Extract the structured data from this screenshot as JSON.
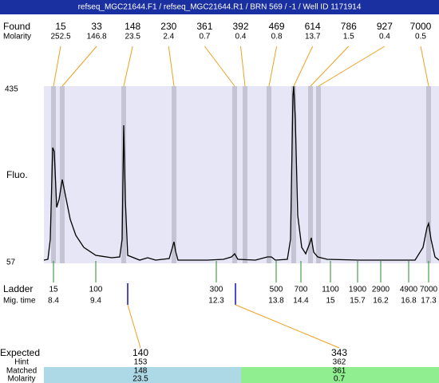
{
  "header": {
    "title": "refseq_MGC21644.F1 / refseq_MGC21644.R1 / BRN 569 / -1 / Well ID 1171914"
  },
  "found": {
    "label": "Found",
    "molarity_label": "Molarity",
    "peaks": [
      {
        "size": 15,
        "molarity": 252.5
      },
      {
        "size": 33,
        "molarity": 146.8
      },
      {
        "size": 148,
        "molarity": 23.5
      },
      {
        "size": 230,
        "molarity": 2.4
      },
      {
        "size": 361,
        "molarity": 0.7
      },
      {
        "size": 392,
        "molarity": 0.4
      },
      {
        "size": 469,
        "molarity": 0.8
      },
      {
        "size": 614,
        "molarity": 13.7
      },
      {
        "size": 786,
        "molarity": 1.5
      },
      {
        "size": 927,
        "molarity": 0.4
      },
      {
        "size": 7000,
        "molarity": 0.5
      }
    ]
  },
  "axis": {
    "label": "Fluo.",
    "top": 435,
    "bottom": 57
  },
  "ladder": {
    "label": "Ladder",
    "mig_time_label": "Mig. time",
    "bands": [
      {
        "size": 15,
        "mig_time": 8.4
      },
      {
        "size": 100,
        "mig_time": 9.4
      },
      {
        "size": 300,
        "mig_time": 12.3
      },
      {
        "size": 500,
        "mig_time": 13.8
      },
      {
        "size": 700,
        "mig_time": 14.4
      },
      {
        "size": 1100,
        "mig_time": 15
      },
      {
        "size": 1900,
        "mig_time": 15.7
      },
      {
        "size": 2900,
        "mig_time": 16.2
      },
      {
        "size": 4900,
        "mig_time": 16.8
      },
      {
        "size": 7000,
        "mig_time": 17.3
      }
    ]
  },
  "expected": {
    "expected_label": "Expected",
    "hint_label": "Hint",
    "matched_label": "Matched",
    "molarity_label": "Molarity",
    "columns": [
      {
        "expected": 140,
        "hint": 153,
        "matched": 148,
        "molarity": 23.5
      },
      {
        "expected": 343,
        "hint": 362,
        "matched": 361,
        "molarity": 0.7
      }
    ]
  }
}
